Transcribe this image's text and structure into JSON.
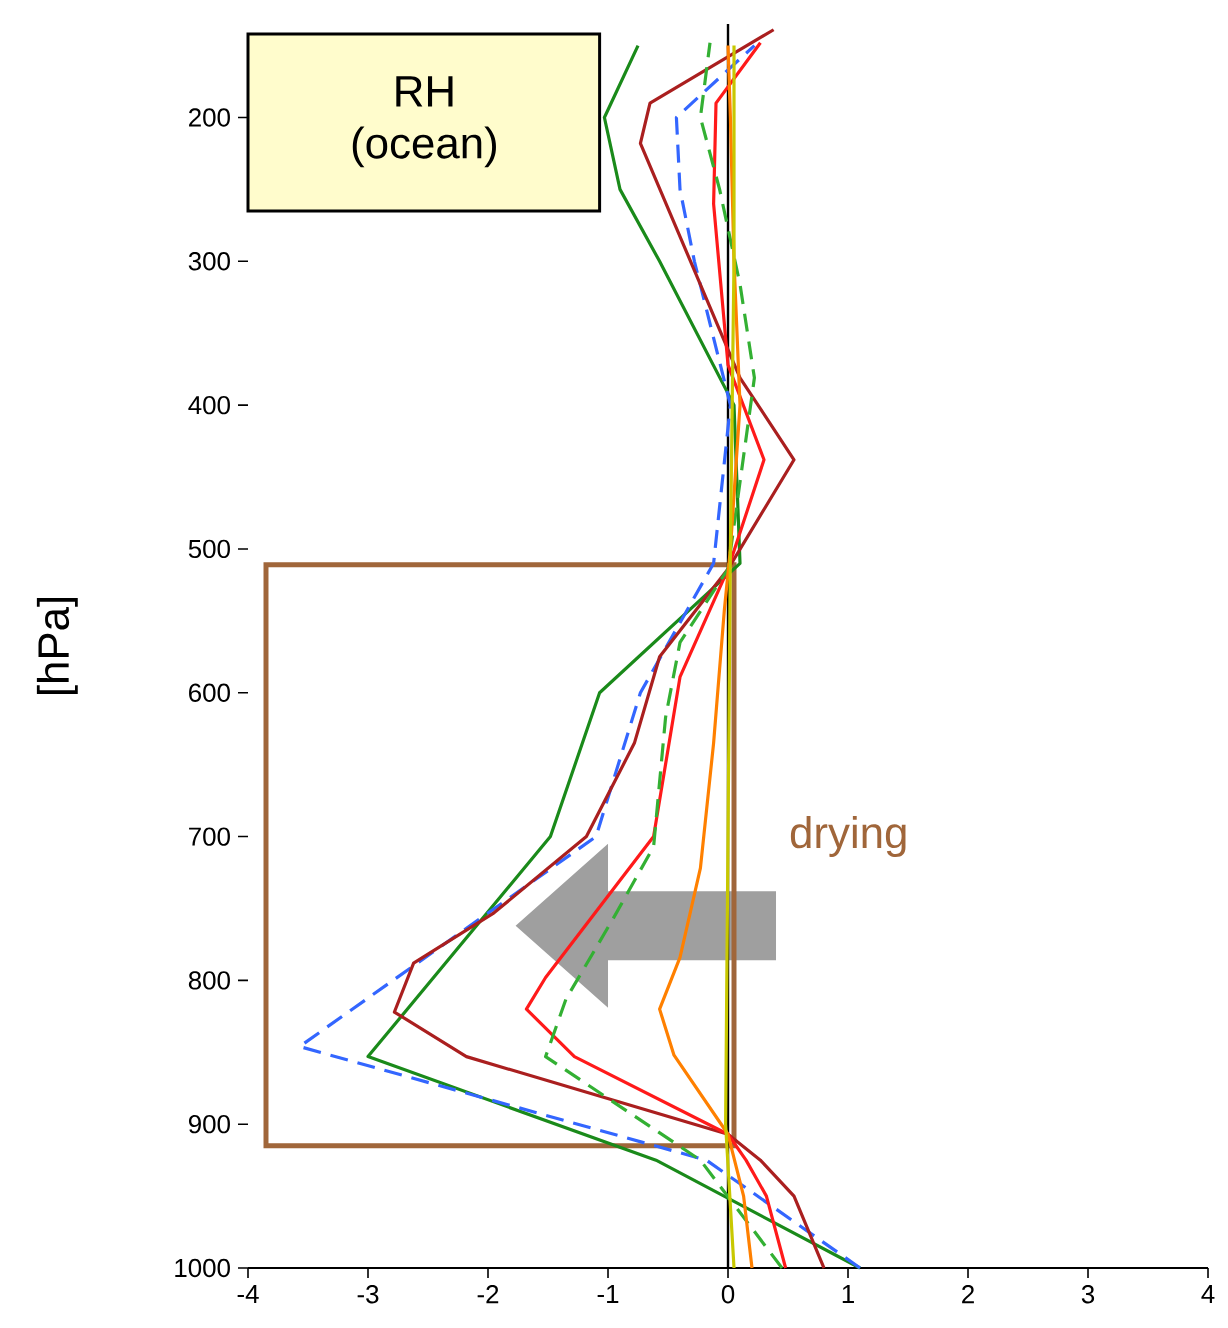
{
  "chart_data": {
    "type": "line",
    "title": "RH (ocean)",
    "ylabel": "[hPa]",
    "annotations": [
      "drying"
    ],
    "xlim": [
      -4,
      4
    ],
    "xticks": [
      -4,
      -3,
      -2,
      -1,
      0,
      1,
      2,
      3,
      4
    ],
    "ylim": [
      1000,
      135
    ],
    "yticks": [
      200,
      300,
      400,
      500,
      600,
      700,
      800,
      900,
      1000
    ],
    "ref_lines": [
      {
        "axis": "x",
        "value": 0,
        "color": "#000000"
      }
    ],
    "series": [
      {
        "color": "#1a8a1a",
        "line_style": "solid",
        "x": [
          1.1,
          -0.6,
          -3.0,
          -1.48,
          -1.07,
          0.1,
          0.05,
          -0.57,
          -0.9,
          -1.03,
          -0.75
        ],
        "values": [
          1000,
          925,
          853,
          700,
          600,
          510,
          400,
          300,
          250,
          200,
          150
        ]
      },
      {
        "color": "#3366ff",
        "line_style": "dashed",
        "x": [
          1.1,
          -0.18,
          -3.57,
          -1.1,
          -0.73,
          -0.12,
          0.02,
          -0.28,
          -0.4,
          -0.43,
          0.22
        ],
        "values": [
          1000,
          925,
          846,
          700,
          600,
          510,
          400,
          300,
          250,
          200,
          150
        ]
      },
      {
        "color": "#aa1f1f",
        "line_style": "solid",
        "x": [
          0.8,
          0.55,
          0.27,
          0.0,
          -2.18,
          -2.78,
          -2.62,
          -1.95,
          -1.18,
          -0.78,
          -0.57,
          0.0,
          0.55,
          0.1,
          -0.73,
          -0.65,
          0.38
        ],
        "values": [
          1000,
          950,
          925,
          907,
          853,
          822,
          788,
          753,
          700,
          635,
          575,
          514,
          438,
          381,
          218,
          190,
          139
        ]
      },
      {
        "color": "#ff1a1a",
        "line_style": "solid",
        "x": [
          0.48,
          0.32,
          0.15,
          0.0,
          -1.28,
          -1.68,
          -1.52,
          -0.85,
          -0.62,
          -0.4,
          0.0,
          0.3,
          0.0,
          -0.12,
          -0.1,
          0.27
        ],
        "values": [
          1000,
          950,
          925,
          907,
          853,
          820,
          798,
          725,
          700,
          589,
          514,
          438,
          372,
          260,
          190,
          148
        ]
      },
      {
        "color": "#33b033",
        "line_style": "dashed",
        "x": [
          0.45,
          -0.23,
          -1.52,
          -1.35,
          -0.95,
          -0.62,
          -0.52,
          -0.4,
          0.0,
          0.22,
          0.1,
          -0.07,
          -0.23,
          -0.15
        ],
        "values": [
          1000,
          925,
          853,
          813,
          756,
          707,
          617,
          565,
          514,
          381,
          316,
          250,
          200,
          148
        ]
      },
      {
        "color": "#ff8000",
        "line_style": "solid",
        "x": [
          0.2,
          0.13,
          0.0,
          -0.45,
          -0.57,
          -0.4,
          -0.23,
          -0.12,
          -0.03,
          0.02,
          0.1,
          0.05,
          0.02,
          0.0
        ],
        "values": [
          1000,
          950,
          907,
          852,
          820,
          784,
          722,
          635,
          542,
          500,
          400,
          300,
          200,
          150
        ]
      },
      {
        "color": "#c8c800",
        "line_style": "solid",
        "x": [
          0.05,
          -0.02,
          0.02,
          0.05,
          0.05
        ],
        "values": [
          1000,
          900,
          500,
          300,
          150
        ]
      }
    ]
  }
}
